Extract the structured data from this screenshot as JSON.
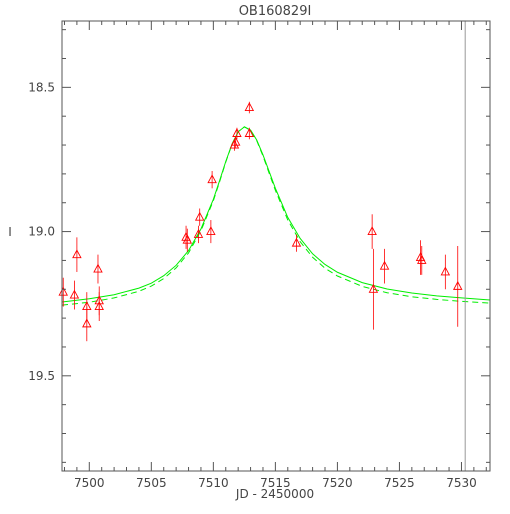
{
  "chart_data": {
    "type": "scatter",
    "title": "OB160829I",
    "xlabel": "JD - 2450000",
    "ylabel": "I",
    "xlim": [
      7497.8,
      7532.3
    ],
    "ylim": [
      19.83,
      18.27
    ],
    "y_inverted": true,
    "x_ticks": [
      7500,
      7505,
      7510,
      7515,
      7520,
      7525,
      7530
    ],
    "x_tick_labels": [
      "7500",
      "7505",
      "7510",
      "7515",
      "7520",
      "7525",
      "7530"
    ],
    "y_ticks": [
      18.5,
      19.0,
      19.5
    ],
    "y_tick_labels": [
      "18.5",
      "19.0",
      "19.5"
    ],
    "grid": false,
    "vertical_marker": {
      "x": 7530.3,
      "color": "#999999"
    },
    "observations": {
      "marker": "triangle-open",
      "color": "#ff0000",
      "points": [
        {
          "x": 7497.9,
          "y": 19.21,
          "err": 0.05
        },
        {
          "x": 7498.8,
          "y": 19.22,
          "err": 0.05
        },
        {
          "x": 7499.0,
          "y": 19.08,
          "err": 0.06
        },
        {
          "x": 7499.8,
          "y": 19.26,
          "err": 0.05
        },
        {
          "x": 7499.8,
          "y": 19.32,
          "err": 0.06
        },
        {
          "x": 7500.7,
          "y": 19.13,
          "err": 0.05
        },
        {
          "x": 7500.8,
          "y": 19.24,
          "err": 0.05
        },
        {
          "x": 7500.8,
          "y": 19.26,
          "err": 0.05
        },
        {
          "x": 7507.8,
          "y": 19.02,
          "err": 0.04
        },
        {
          "x": 7507.9,
          "y": 19.03,
          "err": 0.04
        },
        {
          "x": 7508.8,
          "y": 19.01,
          "err": 0.03
        },
        {
          "x": 7508.9,
          "y": 18.95,
          "err": 0.03
        },
        {
          "x": 7509.8,
          "y": 19.0,
          "err": 0.04
        },
        {
          "x": 7509.9,
          "y": 18.82,
          "err": 0.03
        },
        {
          "x": 7511.7,
          "y": 18.7,
          "err": 0.02
        },
        {
          "x": 7511.8,
          "y": 18.69,
          "err": 0.02
        },
        {
          "x": 7511.9,
          "y": 18.66,
          "err": 0.02
        },
        {
          "x": 7512.9,
          "y": 18.57,
          "err": 0.02
        },
        {
          "x": 7512.9,
          "y": 18.66,
          "err": 0.02
        },
        {
          "x": 7516.7,
          "y": 19.04,
          "err": 0.03
        },
        {
          "x": 7522.8,
          "y": 19.0,
          "err": 0.06
        },
        {
          "x": 7522.9,
          "y": 19.2,
          "err": 0.14
        },
        {
          "x": 7523.8,
          "y": 19.12,
          "err": 0.06
        },
        {
          "x": 7526.7,
          "y": 19.09,
          "err": 0.06
        },
        {
          "x": 7526.8,
          "y": 19.1,
          "err": 0.05
        },
        {
          "x": 7528.7,
          "y": 19.14,
          "err": 0.06
        },
        {
          "x": 7529.7,
          "y": 19.19,
          "err": 0.14
        }
      ]
    },
    "models": {
      "color": "#00ee00",
      "curves": [
        {
          "style": "solid",
          "x": [
            7497.8,
            7500,
            7502,
            7504,
            7505,
            7506,
            7507,
            7508,
            7509,
            7510,
            7510.5,
            7511,
            7511.5,
            7512,
            7512.5,
            7513,
            7513.5,
            7514,
            7514.5,
            7515,
            7516,
            7517,
            7518,
            7519,
            7520,
            7522,
            7524,
            7526,
            7528,
            7530,
            7532.3
          ],
          "y": [
            19.244,
            19.233,
            19.219,
            19.196,
            19.179,
            19.153,
            19.117,
            19.066,
            18.991,
            18.888,
            18.824,
            18.757,
            18.697,
            18.654,
            18.637,
            18.648,
            18.683,
            18.734,
            18.792,
            18.85,
            18.951,
            19.024,
            19.077,
            19.114,
            19.141,
            19.177,
            19.199,
            19.213,
            19.223,
            19.23,
            19.237
          ]
        },
        {
          "style": "dashed",
          "x": [
            7497.8,
            7500,
            7502,
            7504,
            7505,
            7506,
            7507,
            7508,
            7509,
            7510,
            7510.5,
            7511,
            7511.5,
            7512,
            7512.5,
            7513,
            7513.5,
            7514,
            7514.5,
            7515,
            7516,
            7517,
            7518,
            7519,
            7520,
            7522,
            7524,
            7526,
            7528,
            7530,
            7532.3
          ],
          "y": [
            19.255,
            19.245,
            19.23,
            19.207,
            19.189,
            19.163,
            19.126,
            19.074,
            18.997,
            18.893,
            18.828,
            18.759,
            18.698,
            18.654,
            18.637,
            18.649,
            18.685,
            18.738,
            18.798,
            18.857,
            18.96,
            19.035,
            19.089,
            19.127,
            19.154,
            19.19,
            19.212,
            19.226,
            19.235,
            19.242,
            19.248
          ]
        }
      ]
    }
  }
}
